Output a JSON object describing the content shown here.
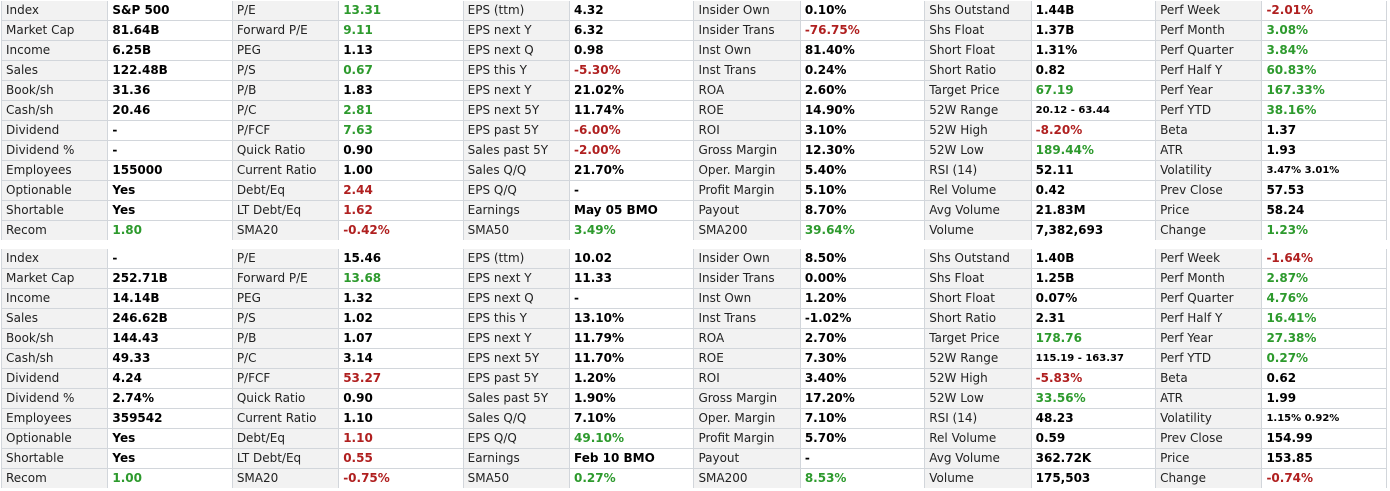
{
  "colors": {
    "positive": "#2d9a2d",
    "negative": "#b02020",
    "label_bg": "#f2f2f2",
    "grid": "#d2d6db"
  },
  "tables": [
    {
      "rows": [
        [
          [
            "Index",
            "S&P 500",
            ""
          ],
          [
            "P/E",
            "13.31",
            "pos"
          ],
          [
            "EPS (ttm)",
            "4.32",
            ""
          ],
          [
            "Insider Own",
            "0.10%",
            ""
          ],
          [
            "Shs Outstand",
            "1.44B",
            ""
          ],
          [
            "Perf Week",
            "-2.01%",
            "neg"
          ]
        ],
        [
          [
            "Market Cap",
            "81.64B",
            ""
          ],
          [
            "Forward P/E",
            "9.11",
            "pos"
          ],
          [
            "EPS next Y",
            "6.32",
            ""
          ],
          [
            "Insider Trans",
            "-76.75%",
            "neg"
          ],
          [
            "Shs Float",
            "1.37B",
            ""
          ],
          [
            "Perf Month",
            "3.08%",
            "pos"
          ]
        ],
        [
          [
            "Income",
            "6.25B",
            ""
          ],
          [
            "PEG",
            "1.13",
            ""
          ],
          [
            "EPS next Q",
            "0.98",
            ""
          ],
          [
            "Inst Own",
            "81.40%",
            ""
          ],
          [
            "Short Float",
            "1.31%",
            ""
          ],
          [
            "Perf Quarter",
            "3.84%",
            "pos"
          ]
        ],
        [
          [
            "Sales",
            "122.48B",
            ""
          ],
          [
            "P/S",
            "0.67",
            "pos"
          ],
          [
            "EPS this Y",
            "-5.30%",
            "neg"
          ],
          [
            "Inst Trans",
            "0.24%",
            ""
          ],
          [
            "Short Ratio",
            "0.82",
            ""
          ],
          [
            "Perf Half Y",
            "60.83%",
            "pos"
          ]
        ],
        [
          [
            "Book/sh",
            "31.36",
            ""
          ],
          [
            "P/B",
            "1.83",
            ""
          ],
          [
            "EPS next Y",
            "21.02%",
            ""
          ],
          [
            "ROA",
            "2.60%",
            ""
          ],
          [
            "Target Price",
            "67.19",
            "pos"
          ],
          [
            "Perf Year",
            "167.33%",
            "pos"
          ]
        ],
        [
          [
            "Cash/sh",
            "20.46",
            ""
          ],
          [
            "P/C",
            "2.81",
            "pos"
          ],
          [
            "EPS next 5Y",
            "11.74%",
            ""
          ],
          [
            "ROE",
            "14.90%",
            ""
          ],
          [
            "52W Range",
            "20.12 - 63.44",
            "small"
          ],
          [
            "Perf YTD",
            "38.16%",
            "pos"
          ]
        ],
        [
          [
            "Dividend",
            "-",
            ""
          ],
          [
            "P/FCF",
            "7.63",
            "pos"
          ],
          [
            "EPS past 5Y",
            "-6.00%",
            "neg"
          ],
          [
            "ROI",
            "3.10%",
            ""
          ],
          [
            "52W High",
            "-8.20%",
            "neg"
          ],
          [
            "Beta",
            "1.37",
            ""
          ]
        ],
        [
          [
            "Dividend %",
            "-",
            ""
          ],
          [
            "Quick Ratio",
            "0.90",
            ""
          ],
          [
            "Sales past 5Y",
            "-2.00%",
            "neg"
          ],
          [
            "Gross Margin",
            "12.30%",
            ""
          ],
          [
            "52W Low",
            "189.44%",
            "pos"
          ],
          [
            "ATR",
            "1.93",
            ""
          ]
        ],
        [
          [
            "Employees",
            "155000",
            ""
          ],
          [
            "Current Ratio",
            "1.00",
            ""
          ],
          [
            "Sales Q/Q",
            "21.70%",
            ""
          ],
          [
            "Oper. Margin",
            "5.40%",
            ""
          ],
          [
            "RSI (14)",
            "52.11",
            ""
          ],
          [
            "Volatility",
            "3.47% 3.01%",
            "small"
          ]
        ],
        [
          [
            "Optionable",
            "Yes",
            ""
          ],
          [
            "Debt/Eq",
            "2.44",
            "neg"
          ],
          [
            "EPS Q/Q",
            "-",
            ""
          ],
          [
            "Profit Margin",
            "5.10%",
            ""
          ],
          [
            "Rel Volume",
            "0.42",
            ""
          ],
          [
            "Prev Close",
            "57.53",
            ""
          ]
        ],
        [
          [
            "Shortable",
            "Yes",
            ""
          ],
          [
            "LT Debt/Eq",
            "1.62",
            "neg"
          ],
          [
            "Earnings",
            "May 05 BMO",
            ""
          ],
          [
            "Payout",
            "8.70%",
            ""
          ],
          [
            "Avg Volume",
            "21.83M",
            ""
          ],
          [
            "Price",
            "58.24",
            ""
          ]
        ],
        [
          [
            "Recom",
            "1.80",
            "pos"
          ],
          [
            "SMA20",
            "-0.42%",
            "neg"
          ],
          [
            "SMA50",
            "3.49%",
            "pos"
          ],
          [
            "SMA200",
            "39.64%",
            "pos"
          ],
          [
            "Volume",
            "7,382,693",
            ""
          ],
          [
            "Change",
            "1.23%",
            "pos"
          ]
        ]
      ]
    },
    {
      "rows": [
        [
          [
            "Index",
            "-",
            ""
          ],
          [
            "P/E",
            "15.46",
            ""
          ],
          [
            "EPS (ttm)",
            "10.02",
            ""
          ],
          [
            "Insider Own",
            "8.50%",
            ""
          ],
          [
            "Shs Outstand",
            "1.40B",
            ""
          ],
          [
            "Perf Week",
            "-1.64%",
            "neg"
          ]
        ],
        [
          [
            "Market Cap",
            "252.71B",
            ""
          ],
          [
            "Forward P/E",
            "13.68",
            "pos"
          ],
          [
            "EPS next Y",
            "11.33",
            ""
          ],
          [
            "Insider Trans",
            "0.00%",
            ""
          ],
          [
            "Shs Float",
            "1.25B",
            ""
          ],
          [
            "Perf Month",
            "2.87%",
            "pos"
          ]
        ],
        [
          [
            "Income",
            "14.14B",
            ""
          ],
          [
            "PEG",
            "1.32",
            ""
          ],
          [
            "EPS next Q",
            "-",
            ""
          ],
          [
            "Inst Own",
            "1.20%",
            ""
          ],
          [
            "Short Float",
            "0.07%",
            ""
          ],
          [
            "Perf Quarter",
            "4.76%",
            "pos"
          ]
        ],
        [
          [
            "Sales",
            "246.62B",
            ""
          ],
          [
            "P/S",
            "1.02",
            ""
          ],
          [
            "EPS this Y",
            "13.10%",
            ""
          ],
          [
            "Inst Trans",
            "-1.02%",
            ""
          ],
          [
            "Short Ratio",
            "2.31",
            ""
          ],
          [
            "Perf Half Y",
            "16.41%",
            "pos"
          ]
        ],
        [
          [
            "Book/sh",
            "144.43",
            ""
          ],
          [
            "P/B",
            "1.07",
            ""
          ],
          [
            "EPS next Y",
            "11.79%",
            ""
          ],
          [
            "ROA",
            "2.70%",
            ""
          ],
          [
            "Target Price",
            "178.76",
            "pos"
          ],
          [
            "Perf Year",
            "27.38%",
            "pos"
          ]
        ],
        [
          [
            "Cash/sh",
            "49.33",
            ""
          ],
          [
            "P/C",
            "3.14",
            ""
          ],
          [
            "EPS next 5Y",
            "11.70%",
            ""
          ],
          [
            "ROE",
            "7.30%",
            ""
          ],
          [
            "52W Range",
            "115.19 - 163.37",
            "small"
          ],
          [
            "Perf YTD",
            "0.27%",
            "pos"
          ]
        ],
        [
          [
            "Dividend",
            "4.24",
            ""
          ],
          [
            "P/FCF",
            "53.27",
            "neg"
          ],
          [
            "EPS past 5Y",
            "1.20%",
            ""
          ],
          [
            "ROI",
            "3.40%",
            ""
          ],
          [
            "52W High",
            "-5.83%",
            "neg"
          ],
          [
            "Beta",
            "0.62",
            ""
          ]
        ],
        [
          [
            "Dividend %",
            "2.74%",
            ""
          ],
          [
            "Quick Ratio",
            "0.90",
            ""
          ],
          [
            "Sales past 5Y",
            "1.90%",
            ""
          ],
          [
            "Gross Margin",
            "17.20%",
            ""
          ],
          [
            "52W Low",
            "33.56%",
            "pos"
          ],
          [
            "ATR",
            "1.99",
            ""
          ]
        ],
        [
          [
            "Employees",
            "359542",
            ""
          ],
          [
            "Current Ratio",
            "1.10",
            ""
          ],
          [
            "Sales Q/Q",
            "7.10%",
            ""
          ],
          [
            "Oper. Margin",
            "7.10%",
            ""
          ],
          [
            "RSI (14)",
            "48.23",
            ""
          ],
          [
            "Volatility",
            "1.15% 0.92%",
            "small"
          ]
        ],
        [
          [
            "Optionable",
            "Yes",
            ""
          ],
          [
            "Debt/Eq",
            "1.10",
            "neg"
          ],
          [
            "EPS Q/Q",
            "49.10%",
            "pos"
          ],
          [
            "Profit Margin",
            "5.70%",
            ""
          ],
          [
            "Rel Volume",
            "0.59",
            ""
          ],
          [
            "Prev Close",
            "154.99",
            ""
          ]
        ],
        [
          [
            "Shortable",
            "Yes",
            ""
          ],
          [
            "LT Debt/Eq",
            "0.55",
            "neg"
          ],
          [
            "Earnings",
            "Feb 10 BMO",
            ""
          ],
          [
            "Payout",
            "-",
            ""
          ],
          [
            "Avg Volume",
            "362.72K",
            ""
          ],
          [
            "Price",
            "153.85",
            ""
          ]
        ],
        [
          [
            "Recom",
            "1.00",
            "pos"
          ],
          [
            "SMA20",
            "-0.75%",
            "neg"
          ],
          [
            "SMA50",
            "0.27%",
            "pos"
          ],
          [
            "SMA200",
            "8.53%",
            "pos"
          ],
          [
            "Volume",
            "175,503",
            ""
          ],
          [
            "Change",
            "-0.74%",
            "neg"
          ]
        ]
      ]
    }
  ]
}
